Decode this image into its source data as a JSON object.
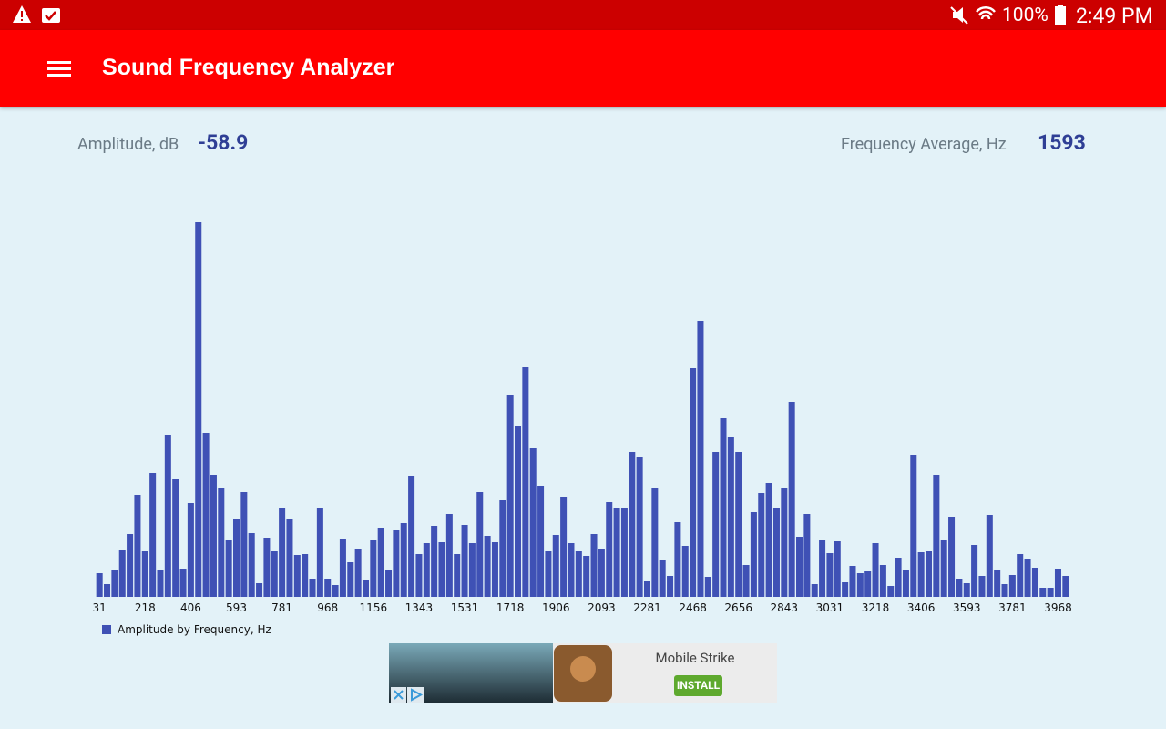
{
  "status_bar": {
    "battery": "100%",
    "time": "2:49 PM"
  },
  "app_bar": {
    "title": "Sound Frequency Analyzer"
  },
  "readouts": {
    "amplitude_label": "Amplitude, dB",
    "amplitude_value": "-58.9",
    "frequency_label": "Frequency Average, Hz",
    "frequency_value": "1593"
  },
  "chart_data": {
    "type": "bar",
    "categories": [
      "31",
      null,
      null,
      null,
      null,
      null,
      "218",
      null,
      null,
      null,
      null,
      null,
      "406",
      null,
      null,
      null,
      null,
      null,
      "593",
      null,
      null,
      null,
      null,
      null,
      "781",
      null,
      null,
      null,
      null,
      null,
      "968",
      null,
      null,
      null,
      null,
      null,
      "1156",
      null,
      null,
      null,
      null,
      null,
      "1343",
      null,
      null,
      null,
      null,
      null,
      "1531",
      null,
      null,
      null,
      null,
      null,
      "1718",
      null,
      null,
      null,
      null,
      null,
      "1906",
      null,
      null,
      null,
      null,
      null,
      "2093",
      null,
      null,
      null,
      null,
      null,
      "2281",
      null,
      null,
      null,
      null,
      null,
      "2468",
      null,
      null,
      null,
      null,
      null,
      "2656",
      null,
      null,
      null,
      null,
      null,
      "2843",
      null,
      null,
      null,
      null,
      null,
      "3031",
      null,
      null,
      null,
      null,
      null,
      "3218",
      null,
      null,
      null,
      null,
      null,
      "3406",
      null,
      null,
      null,
      null,
      null,
      "3593",
      null,
      null,
      null,
      null,
      null,
      "3781",
      null,
      null,
      null,
      null,
      null,
      "3968",
      null
    ],
    "series": [
      {
        "name": "Amplitude by Frequency, Hz",
        "color": "#3f51b5",
        "values": [
          26,
          14,
          30,
          51,
          69,
          112,
          50,
          136,
          29,
          178,
          129,
          31,
          103,
          411,
          180,
          134,
          119,
          62,
          85,
          115,
          70,
          15,
          65,
          50,
          97,
          86,
          46,
          47,
          20,
          97,
          20,
          13,
          63,
          38,
          52,
          18,
          62,
          76,
          29,
          73,
          81,
          133,
          47,
          59,
          78,
          60,
          91,
          47,
          79,
          59,
          115,
          67,
          60,
          106,
          221,
          188,
          252,
          163,
          122,
          50,
          68,
          110,
          59,
          50,
          45,
          69,
          53,
          104,
          98,
          97,
          159,
          153,
          17,
          120,
          40,
          23,
          82,
          56,
          251,
          303,
          22,
          159,
          196,
          175,
          159,
          35,
          93,
          114,
          125,
          98,
          119,
          214,
          66,
          91,
          14,
          62,
          48,
          61,
          16,
          34,
          26,
          28,
          59,
          35,
          12,
          43,
          30,
          156,
          49,
          50,
          134,
          62,
          88,
          20,
          15,
          57,
          23,
          90,
          30,
          14,
          24,
          47,
          42,
          32,
          10,
          10,
          31,
          23
        ]
      }
    ],
    "ylim": [
      0,
      420
    ],
    "legend": "bottom-left"
  },
  "ad": {
    "title": "Mobile Strike",
    "button": "INSTALL"
  }
}
